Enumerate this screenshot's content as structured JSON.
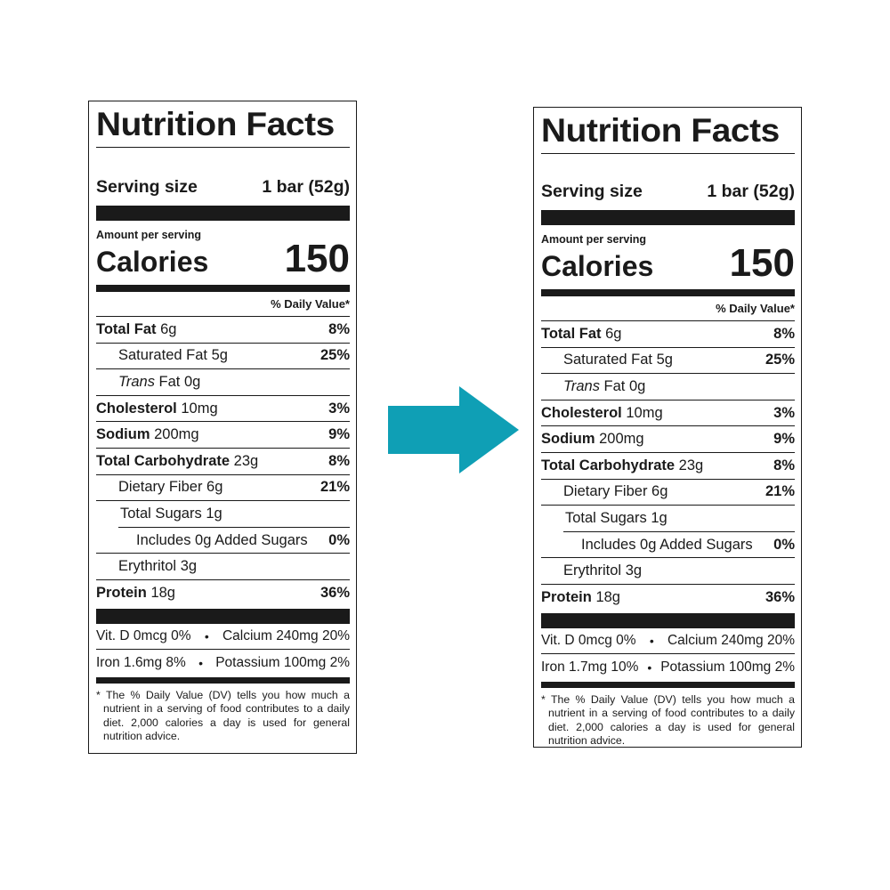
{
  "colors": {
    "arrow": "#0f9fb5",
    "ink": "#1a1a1a"
  },
  "labels": [
    {
      "title": "Nutrition Facts",
      "serving_label": "Serving size",
      "serving_value": "1 bar (52g)",
      "amount_per_serving": "Amount per serving",
      "calories_label": "Calories",
      "calories_value": "150",
      "dv_header": "% Daily Value*",
      "nutrients": [
        {
          "name": "Total Fat",
          "amount": "6g",
          "dv": "8%"
        },
        {
          "name": "Saturated Fat",
          "amount": "5g",
          "dv": "25%"
        },
        {
          "name": "Trans",
          "amount": "Fat 0g",
          "dv": ""
        },
        {
          "name": "Cholesterol",
          "amount": "10mg",
          "dv": "3%"
        },
        {
          "name": "Sodium",
          "amount": "200mg",
          "dv": "9%"
        },
        {
          "name": "Total Carbohydrate",
          "amount": "23g",
          "dv": "8%"
        },
        {
          "name": "Dietary Fiber",
          "amount": "6g",
          "dv": "21%"
        },
        {
          "name": "Total Sugars",
          "amount": "1g",
          "dv": ""
        },
        {
          "name": "Includes 0g Added Sugars",
          "amount": "",
          "dv": "0%"
        },
        {
          "name": "Erythritol",
          "amount": "3g",
          "dv": ""
        },
        {
          "name": "Protein",
          "amount": "18g",
          "dv": "36%"
        }
      ],
      "vitamins": {
        "vit_d": "Vit. D 0mcg 0%",
        "calcium": "Calcium 240mg 20%",
        "iron": "Iron 1.6mg 8%",
        "potassium": "Potassium 100mg 2%"
      },
      "footnote": "* The % Daily Value (DV) tells you how much a nutrient in a serving of food contributes to a daily diet. 2,000 calories a day is used for general nutrition advice."
    },
    {
      "title": "Nutrition Facts",
      "serving_label": "Serving size",
      "serving_value": "1 bar (52g)",
      "amount_per_serving": "Amount per serving",
      "calories_label": "Calories",
      "calories_value": "150",
      "dv_header": "% Daily Value*",
      "nutrients": [
        {
          "name": "Total Fat",
          "amount": "6g",
          "dv": "8%"
        },
        {
          "name": "Saturated Fat",
          "amount": "5g",
          "dv": "25%"
        },
        {
          "name": "Trans",
          "amount": "Fat 0g",
          "dv": ""
        },
        {
          "name": "Cholesterol",
          "amount": "10mg",
          "dv": "3%"
        },
        {
          "name": "Sodium",
          "amount": "200mg",
          "dv": "9%"
        },
        {
          "name": "Total Carbohydrate",
          "amount": "23g",
          "dv": "8%"
        },
        {
          "name": "Dietary Fiber",
          "amount": "6g",
          "dv": "21%"
        },
        {
          "name": "Total Sugars",
          "amount": "1g",
          "dv": ""
        },
        {
          "name": "Includes 0g Added Sugars",
          "amount": "",
          "dv": "0%"
        },
        {
          "name": "Erythritol",
          "amount": "3g",
          "dv": ""
        },
        {
          "name": "Protein",
          "amount": "18g",
          "dv": "36%"
        }
      ],
      "vitamins": {
        "vit_d": "Vit. D 0mcg 0%",
        "calcium": "Calcium 240mg 20%",
        "iron": "Iron 1.7mg 10%",
        "potassium": "Potassium 100mg 2%"
      },
      "footnote": "* The % Daily Value (DV) tells you how much a nutrient in a serving of food contributes to a daily diet. 2,000 calories a day is used for general nutrition advice."
    }
  ]
}
